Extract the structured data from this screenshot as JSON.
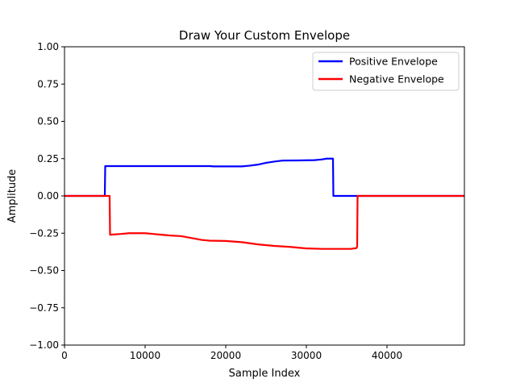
{
  "chart_data": {
    "type": "line",
    "title": "Draw Your Custom Envelope",
    "xlabel": "Sample Index",
    "ylabel": "Amplitude",
    "xlim": [
      0,
      49600
    ],
    "ylim": [
      -1.0,
      1.0
    ],
    "xticks": [
      0,
      10000,
      20000,
      30000,
      40000
    ],
    "xtick_labels": [
      "0",
      "10000",
      "20000",
      "30000",
      "40000"
    ],
    "yticks": [
      -1.0,
      -0.75,
      -0.5,
      -0.25,
      0.0,
      0.25,
      0.5,
      0.75,
      1.0
    ],
    "ytick_labels": [
      "−1.00",
      "−0.75",
      "−0.50",
      "−0.25",
      "0.00",
      "0.25",
      "0.50",
      "0.75",
      "1.00"
    ],
    "grid": false,
    "legend": "top-right",
    "series": [
      {
        "name": "Positive Envelope",
        "color": "#0000ff",
        "x": [
          0,
          5000,
          5050,
          10000,
          15000,
          18000,
          18500,
          22000,
          23000,
          24000,
          25000,
          26000,
          27000,
          29000,
          31000,
          32000,
          32500,
          33300,
          33350,
          40000,
          49600
        ],
        "y": [
          0.0,
          0.0,
          0.2,
          0.2,
          0.2,
          0.2,
          0.198,
          0.198,
          0.203,
          0.21,
          0.222,
          0.23,
          0.237,
          0.238,
          0.24,
          0.245,
          0.25,
          0.25,
          0.0,
          0.0,
          0.0
        ]
      },
      {
        "name": "Negative Envelope",
        "color": "#ff0000",
        "x": [
          0,
          5600,
          5650,
          7000,
          8000,
          10000,
          11000,
          12000,
          13000,
          14500,
          16000,
          17000,
          18000,
          20000,
          22000,
          24000,
          26000,
          28000,
          30000,
          32000,
          34000,
          35500,
          36200,
          36300,
          36350,
          40000,
          49600
        ],
        "y": [
          0.0,
          0.0,
          -0.26,
          -0.255,
          -0.25,
          -0.25,
          -0.255,
          -0.26,
          -0.265,
          -0.27,
          -0.285,
          -0.295,
          -0.3,
          -0.302,
          -0.31,
          -0.325,
          -0.335,
          -0.342,
          -0.352,
          -0.355,
          -0.355,
          -0.355,
          -0.35,
          -0.34,
          0.0,
          0.0,
          0.0
        ]
      }
    ]
  }
}
